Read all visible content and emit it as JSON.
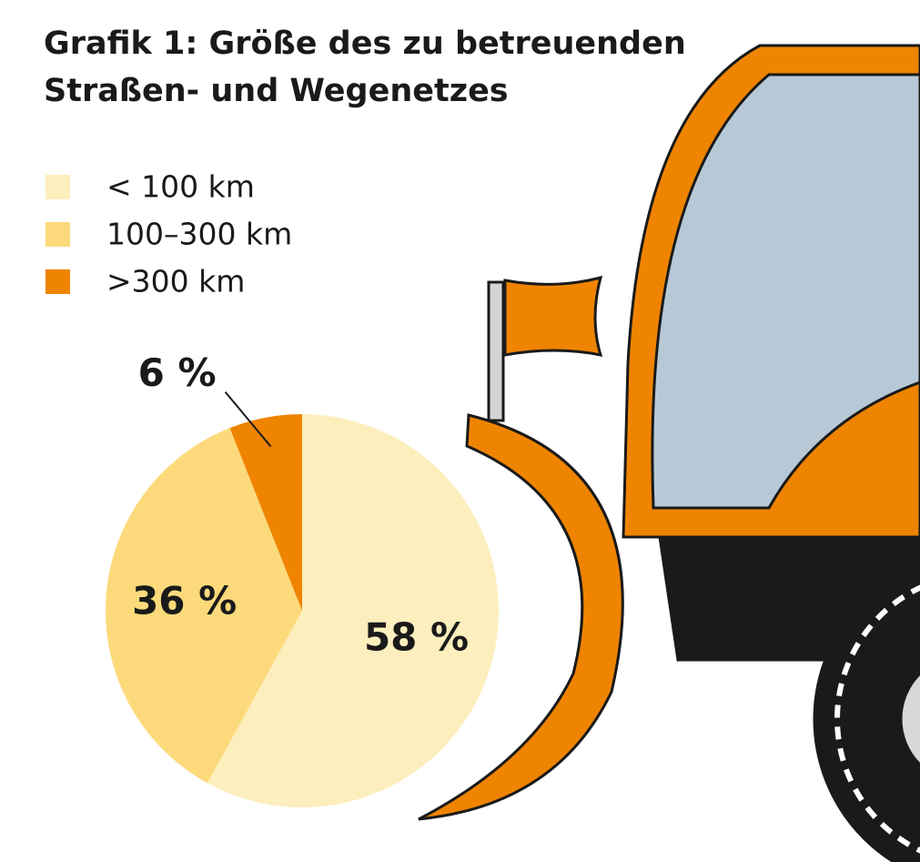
{
  "chart_data": {
    "type": "pie",
    "title": "Grafik 1: Größe des zu betreuenden Straßen- und Wegenetzes",
    "categories": [
      "< 100 km",
      "100–300 km",
      ">300 km"
    ],
    "values": [
      58,
      36,
      6
    ],
    "value_labels": [
      "58 %",
      "36 %",
      "6 %"
    ],
    "colors": [
      "#fdeebd",
      "#fcda7b",
      "#ef8400"
    ]
  }
}
